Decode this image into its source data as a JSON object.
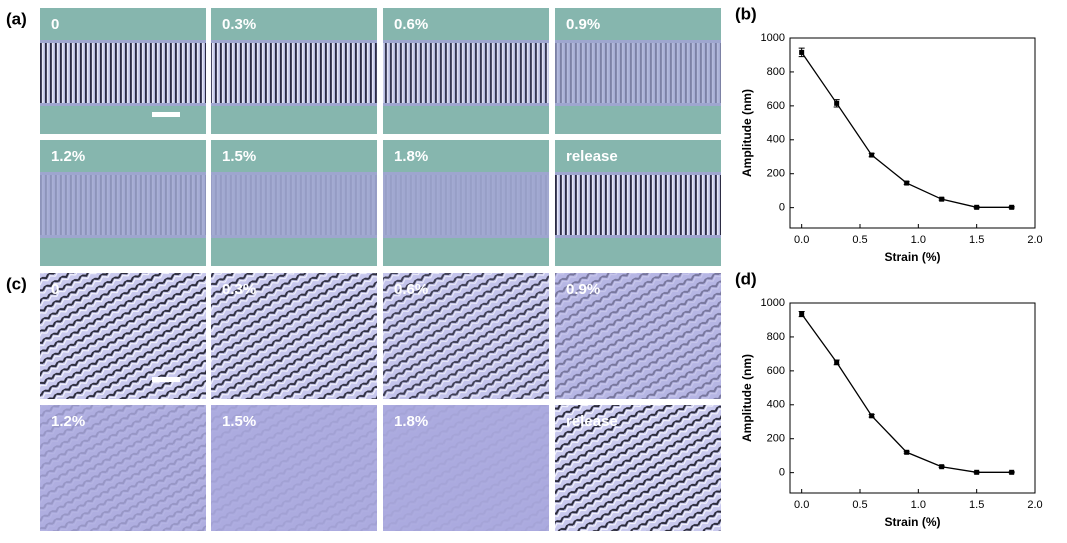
{
  "panels": [
    {
      "label": "(a)",
      "images": [
        "0",
        "0.3%",
        "0.6%",
        "0.9%",
        "1.2%",
        "1.5%",
        "1.8%",
        "release"
      ]
    },
    {
      "label": "(c)",
      "images": [
        "0",
        "0.3%",
        "0.6%",
        "0.9%",
        "1.2%",
        "1.5%",
        "1.8%",
        "release"
      ]
    }
  ],
  "chart_data": [
    {
      "type": "line",
      "panel_label": "(b)",
      "xlabel": "Strain (%)",
      "ylabel": "Amplitude (nm)",
      "color": "#000000",
      "x": [
        0,
        0.3,
        0.6,
        0.9,
        1.2,
        1.5,
        1.8
      ],
      "values": [
        915,
        615,
        310,
        145,
        50,
        2,
        2
      ],
      "errors": [
        25,
        22,
        10,
        8,
        6,
        4,
        4
      ],
      "xlim": [
        -0.1,
        2.0
      ],
      "ylim": [
        -120,
        1000
      ],
      "xticks": [
        {
          "value": 0,
          "label": "0.0"
        },
        0.5,
        {
          "value": 1,
          "label": "1.0"
        },
        1.5,
        {
          "value": 2,
          "label": "2.0"
        }
      ],
      "yticks": [
        0,
        200,
        400,
        600,
        800,
        1000
      ]
    },
    {
      "type": "line",
      "panel_label": "(d)",
      "xlabel": "Strain (%)",
      "ylabel": "Amplitude (nm)",
      "color": "#000000",
      "x": [
        0,
        0.3,
        0.6,
        0.9,
        1.2,
        1.5,
        1.8
      ],
      "values": [
        935,
        650,
        335,
        120,
        35,
        2,
        2
      ],
      "errors": [
        15,
        14,
        8,
        6,
        5,
        3,
        3
      ],
      "xlim": [
        -0.1,
        2.0
      ],
      "ylim": [
        -120,
        1000
      ],
      "xticks": [
        {
          "value": 0,
          "label": "0.0"
        },
        0.5,
        {
          "value": 1,
          "label": "1.0"
        },
        1.5,
        {
          "value": 2,
          "label": "2.0"
        }
      ],
      "yticks": [
        0,
        200,
        400,
        600,
        800,
        1000
      ]
    }
  ]
}
